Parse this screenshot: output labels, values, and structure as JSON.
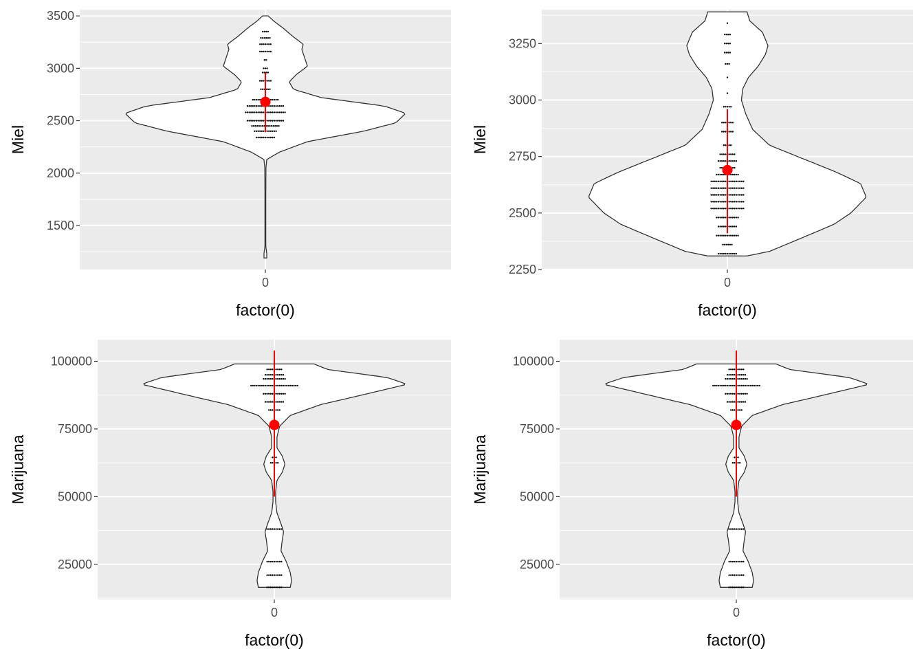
{
  "chart_data": [
    {
      "type": "violin",
      "xlabel": "factor(0)",
      "ylabel": "Miel",
      "categories": [
        "0"
      ],
      "yticks": [
        1500,
        2000,
        2500,
        3000,
        3500
      ],
      "ylim": [
        1080,
        3560
      ],
      "violin_range": [
        1190,
        3500
      ],
      "density_profile": [
        [
          1190,
          0.01
        ],
        [
          1230,
          0.01
        ],
        [
          1300,
          0.003
        ],
        [
          1500,
          0.003
        ],
        [
          1800,
          0.003
        ],
        [
          2050,
          0.004
        ],
        [
          2130,
          0.01
        ],
        [
          2200,
          0.1
        ],
        [
          2300,
          0.3
        ],
        [
          2400,
          0.7
        ],
        [
          2480,
          0.93
        ],
        [
          2570,
          1.0
        ],
        [
          2640,
          0.85
        ],
        [
          2720,
          0.4
        ],
        [
          2800,
          0.2
        ],
        [
          2870,
          0.17
        ],
        [
          2940,
          0.22
        ],
        [
          3020,
          0.3
        ],
        [
          3100,
          0.28
        ],
        [
          3180,
          0.26
        ],
        [
          3230,
          0.27
        ],
        [
          3300,
          0.2
        ],
        [
          3380,
          0.13
        ],
        [
          3450,
          0.06
        ],
        [
          3500,
          0.02
        ]
      ],
      "dot_rows": [
        [
          2340,
          11
        ],
        [
          2400,
          13
        ],
        [
          2450,
          16
        ],
        [
          2500,
          21
        ],
        [
          2580,
          23
        ],
        [
          2640,
          21
        ],
        [
          2700,
          15
        ],
        [
          2800,
          6
        ],
        [
          2880,
          7
        ],
        [
          2960,
          4
        ],
        [
          3000,
          3
        ],
        [
          3080,
          2
        ],
        [
          3160,
          7
        ],
        [
          3230,
          7
        ],
        [
          3290,
          6
        ],
        [
          3350,
          4
        ]
      ],
      "mean": 2680,
      "error_bar": [
        2390,
        2960
      ]
    },
    {
      "type": "violin",
      "xlabel": "factor(0)",
      "ylabel": "Miel",
      "categories": [
        "0"
      ],
      "yticks": [
        2250,
        2500,
        2750,
        3000,
        3250
      ],
      "ylim": [
        2250,
        3400
      ],
      "violin_range": [
        2310,
        3390
      ],
      "density_profile": [
        [
          2310,
          0.14
        ],
        [
          2330,
          0.3
        ],
        [
          2400,
          0.57
        ],
        [
          2450,
          0.76
        ],
        [
          2500,
          0.88
        ],
        [
          2570,
          0.99
        ],
        [
          2630,
          0.95
        ],
        [
          2680,
          0.78
        ],
        [
          2740,
          0.54
        ],
        [
          2800,
          0.3
        ],
        [
          2870,
          0.18
        ],
        [
          2940,
          0.13
        ],
        [
          3000,
          0.1
        ],
        [
          3050,
          0.11
        ],
        [
          3100,
          0.15
        ],
        [
          3150,
          0.22
        ],
        [
          3200,
          0.27
        ],
        [
          3240,
          0.29
        ],
        [
          3300,
          0.25
        ],
        [
          3350,
          0.16
        ],
        [
          3390,
          0.14
        ]
      ],
      "dot_rows": [
        [
          2320,
          11
        ],
        [
          2360,
          6
        ],
        [
          2400,
          13
        ],
        [
          2440,
          11
        ],
        [
          2480,
          13
        ],
        [
          2520,
          19
        ],
        [
          2550,
          19
        ],
        [
          2580,
          19
        ],
        [
          2610,
          19
        ],
        [
          2640,
          19
        ],
        [
          2670,
          13
        ],
        [
          2700,
          9
        ],
        [
          2730,
          11
        ],
        [
          2760,
          9
        ],
        [
          2800,
          5
        ],
        [
          2860,
          7
        ],
        [
          2900,
          7
        ],
        [
          2970,
          5
        ],
        [
          3030,
          1
        ],
        [
          3100,
          1
        ],
        [
          3160,
          3
        ],
        [
          3210,
          4
        ],
        [
          3250,
          4
        ],
        [
          3290,
          4
        ],
        [
          3340,
          1
        ]
      ],
      "mean": 2690,
      "error_bar": [
        2410,
        2960
      ]
    },
    {
      "type": "violin",
      "xlabel": "factor(0)",
      "ylabel": "Marijuana",
      "categories": [
        "0"
      ],
      "yticks": [
        25000,
        50000,
        75000,
        100000
      ],
      "ylim": [
        12000,
        108000
      ],
      "violin_range": [
        16500,
        99000
      ],
      "density_profile": [
        [
          16500,
          0.12
        ],
        [
          19000,
          0.13
        ],
        [
          22000,
          0.12
        ],
        [
          26000,
          0.09
        ],
        [
          30000,
          0.05
        ],
        [
          34000,
          0.06
        ],
        [
          37000,
          0.07
        ],
        [
          40000,
          0.05
        ],
        [
          44000,
          0.02
        ],
        [
          48000,
          0.01
        ],
        [
          52000,
          0.01
        ],
        [
          56000,
          0.02
        ],
        [
          59000,
          0.06
        ],
        [
          62000,
          0.08
        ],
        [
          65000,
          0.06
        ],
        [
          68000,
          0.02
        ],
        [
          72000,
          0.02
        ],
        [
          76000,
          0.04
        ],
        [
          80000,
          0.12
        ],
        [
          84000,
          0.35
        ],
        [
          88000,
          0.7
        ],
        [
          91500,
          1.0
        ],
        [
          94000,
          0.85
        ],
        [
          97000,
          0.4
        ],
        [
          99000,
          0.3
        ]
      ],
      "dot_rows": [
        [
          16500,
          9
        ],
        [
          21000,
          9
        ],
        [
          26000,
          9
        ],
        [
          38000,
          9
        ],
        [
          62500,
          5
        ],
        [
          64500,
          3
        ],
        [
          82000,
          7
        ],
        [
          85000,
          11
        ],
        [
          88000,
          13
        ],
        [
          91000,
          27
        ],
        [
          93500,
          13
        ],
        [
          95000,
          11
        ],
        [
          97000,
          9
        ]
      ],
      "mean": 76500,
      "error_bar": [
        50000,
        104000
      ]
    },
    {
      "type": "violin",
      "xlabel": "factor(0)",
      "ylabel": "Marijuana",
      "categories": [
        "0"
      ],
      "yticks": [
        25000,
        50000,
        75000,
        100000
      ],
      "ylim": [
        12000,
        108000
      ],
      "violin_range": [
        16500,
        99000
      ],
      "density_profile": [
        [
          16500,
          0.12
        ],
        [
          19000,
          0.13
        ],
        [
          22000,
          0.12
        ],
        [
          26000,
          0.09
        ],
        [
          30000,
          0.05
        ],
        [
          34000,
          0.06
        ],
        [
          37000,
          0.07
        ],
        [
          40000,
          0.05
        ],
        [
          44000,
          0.02
        ],
        [
          48000,
          0.01
        ],
        [
          52000,
          0.01
        ],
        [
          56000,
          0.02
        ],
        [
          59000,
          0.06
        ],
        [
          62000,
          0.08
        ],
        [
          65000,
          0.06
        ],
        [
          68000,
          0.02
        ],
        [
          72000,
          0.02
        ],
        [
          76000,
          0.04
        ],
        [
          80000,
          0.12
        ],
        [
          84000,
          0.35
        ],
        [
          88000,
          0.7
        ],
        [
          91500,
          1.0
        ],
        [
          94000,
          0.85
        ],
        [
          97000,
          0.4
        ],
        [
          99000,
          0.3
        ]
      ],
      "dot_rows": [
        [
          16500,
          9
        ],
        [
          21000,
          9
        ],
        [
          26000,
          9
        ],
        [
          38000,
          9
        ],
        [
          62500,
          5
        ],
        [
          64500,
          3
        ],
        [
          82000,
          7
        ],
        [
          85000,
          11
        ],
        [
          88000,
          13
        ],
        [
          91000,
          27
        ],
        [
          93500,
          13
        ],
        [
          95000,
          11
        ],
        [
          97000,
          9
        ]
      ],
      "mean": 76500,
      "error_bar": [
        50000,
        104000
      ]
    }
  ],
  "colors": {
    "panel_bg": "#ebebeb",
    "grid": "#ffffff",
    "violin_fill": "#ffffff",
    "violin_outline": "#333333",
    "dots": "#000000",
    "mean_point": "#ff0000",
    "error_bar": "#ff0000",
    "tick_text": "#4d4d4d"
  }
}
